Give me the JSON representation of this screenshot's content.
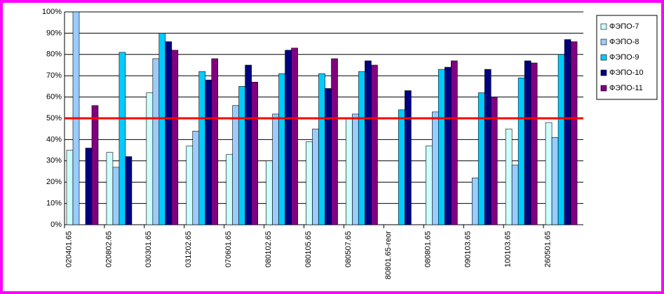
{
  "chart_data": {
    "type": "bar",
    "categories": [
      "020401.65",
      "020802.65",
      "030301.65",
      "031202.65",
      "070601.65",
      "080102.65",
      "080105.65",
      "080507.65",
      "80801.65-reor",
      "080801.65",
      "090103.65",
      "100103.65",
      "260501.65"
    ],
    "series": [
      {
        "name": "ФЭПО-7",
        "color": "#ccffff",
        "values": [
          35,
          34,
          62,
          37,
          33,
          30,
          39,
          50,
          null,
          37,
          null,
          45,
          48
        ]
      },
      {
        "name": "ФЭПО-8",
        "color": "#99ccff",
        "values": [
          100,
          27,
          78,
          44,
          56,
          52,
          45,
          52,
          null,
          53,
          22,
          28,
          41
        ]
      },
      {
        "name": "ФЭПО-9",
        "color": "#00ccff",
        "values": [
          null,
          81,
          90,
          72,
          65,
          71,
          71,
          72,
          54,
          73,
          62,
          69,
          80
        ]
      },
      {
        "name": "ФЭПО-10",
        "color": "#000080",
        "values": [
          36,
          32,
          86,
          68,
          75,
          82,
          64,
          77,
          63,
          74,
          73,
          77,
          87
        ]
      },
      {
        "name": "ФЭПО-11",
        "color": "#800080",
        "values": [
          56,
          null,
          82,
          78,
          67,
          83,
          78,
          75,
          null,
          77,
          60,
          76,
          86
        ]
      }
    ],
    "ylim": [
      0,
      100
    ],
    "yticks": [
      {
        "value": 0,
        "label": "0%"
      },
      {
        "value": 10,
        "label": "10%"
      },
      {
        "value": 20,
        "label": "20%"
      },
      {
        "value": 30,
        "label": "30%"
      },
      {
        "value": 40,
        "label": "40%"
      },
      {
        "value": 50,
        "label": "50%"
      },
      {
        "value": 60,
        "label": "60%"
      },
      {
        "value": 70,
        "label": "70%"
      },
      {
        "value": 80,
        "label": "80%"
      },
      {
        "value": 90,
        "label": "90%"
      },
      {
        "value": 100,
        "label": "100%"
      }
    ],
    "grid": true,
    "threshold": 50,
    "threshold_color": "#ff0000",
    "legend": "right"
  }
}
